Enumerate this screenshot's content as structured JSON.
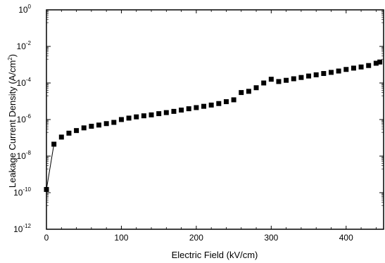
{
  "chart_data": {
    "type": "scatter",
    "title": "",
    "xlabel": "Electric Field (kV/cm)",
    "ylabel_main": "Leakage Current Density (A/cm",
    "ylabel_sup": "2",
    "ylabel_close": ")",
    "xlim": [
      0,
      450
    ],
    "ylim_log10": [
      -12,
      0
    ],
    "y_scale": "log",
    "grid": false,
    "legend": "none",
    "x_ticks": [
      0,
      100,
      200,
      300,
      400
    ],
    "y_tick_exponents": [
      0,
      -2,
      -4,
      -6,
      -8,
      -10,
      -12
    ],
    "y_tick_base": "10",
    "marker_color": "#000000",
    "series": [
      {
        "marker": "square",
        "x": [
          0,
          10,
          20,
          30,
          40,
          50,
          60,
          70,
          80,
          90,
          100,
          110,
          120,
          130,
          140,
          150,
          160,
          170,
          180,
          190,
          200,
          210,
          220,
          230,
          240,
          250,
          260,
          270,
          280,
          290,
          300,
          310,
          320,
          330,
          340,
          350,
          360,
          370,
          380,
          390,
          400,
          410,
          420,
          430,
          440,
          445
        ],
        "y": [
          1.5e-10,
          4.5e-08,
          1.1e-07,
          1.8e-07,
          2.5e-07,
          3.5e-07,
          4.3e-07,
          5e-07,
          6e-07,
          7e-07,
          1e-06,
          1.2e-06,
          1.4e-06,
          1.6e-06,
          1.8e-06,
          2.1e-06,
          2.4e-06,
          2.8e-06,
          3.3e-06,
          3.9e-06,
          4.5e-06,
          5.3e-06,
          6.2e-06,
          7.5e-06,
          9.5e-06,
          1.2e-05,
          3e-05,
          3.5e-05,
          5.5e-05,
          0.0001,
          0.00016,
          0.00012,
          0.00014,
          0.00017,
          0.0002,
          0.00024,
          0.00028,
          0.00033,
          0.00038,
          0.00045,
          0.00055,
          0.00065,
          0.00075,
          0.0009,
          0.0012,
          0.0014
        ]
      }
    ],
    "trace_segment_x": [
      0,
      10
    ],
    "trace_segment_y": [
      1.5e-10,
      4.5e-08
    ]
  }
}
